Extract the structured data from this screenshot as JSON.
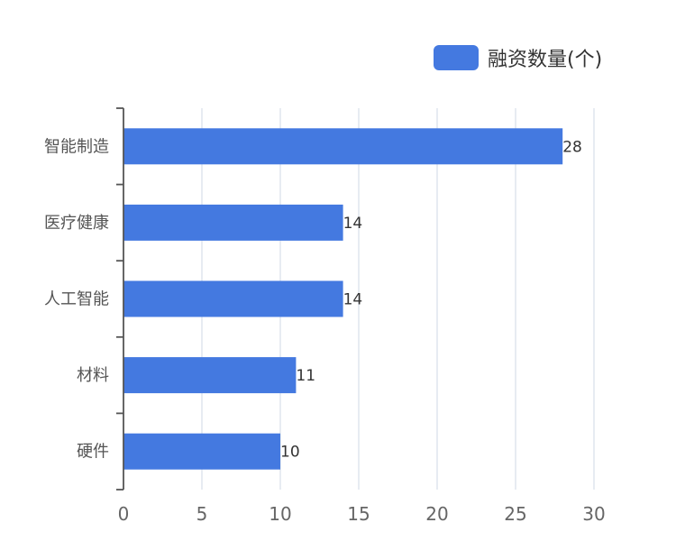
{
  "colors": {
    "bar": "#4479e0",
    "grid": "#d7deea",
    "axis": "#555555"
  },
  "legend": {
    "label": "融资数量(个)"
  },
  "chart_data": {
    "type": "bar",
    "orientation": "horizontal",
    "categories": [
      "智能制造",
      "医疗健康",
      "人工智能",
      "材料",
      "硬件"
    ],
    "series": [
      {
        "name": "融资数量(个)",
        "values": [
          28,
          14,
          14,
          11,
          10
        ]
      }
    ],
    "xlim": [
      0,
      30
    ],
    "x_ticks": [
      0,
      5,
      10,
      15,
      20,
      25,
      30
    ],
    "grid": true,
    "legend_position": "top-right",
    "data_labels": true
  }
}
